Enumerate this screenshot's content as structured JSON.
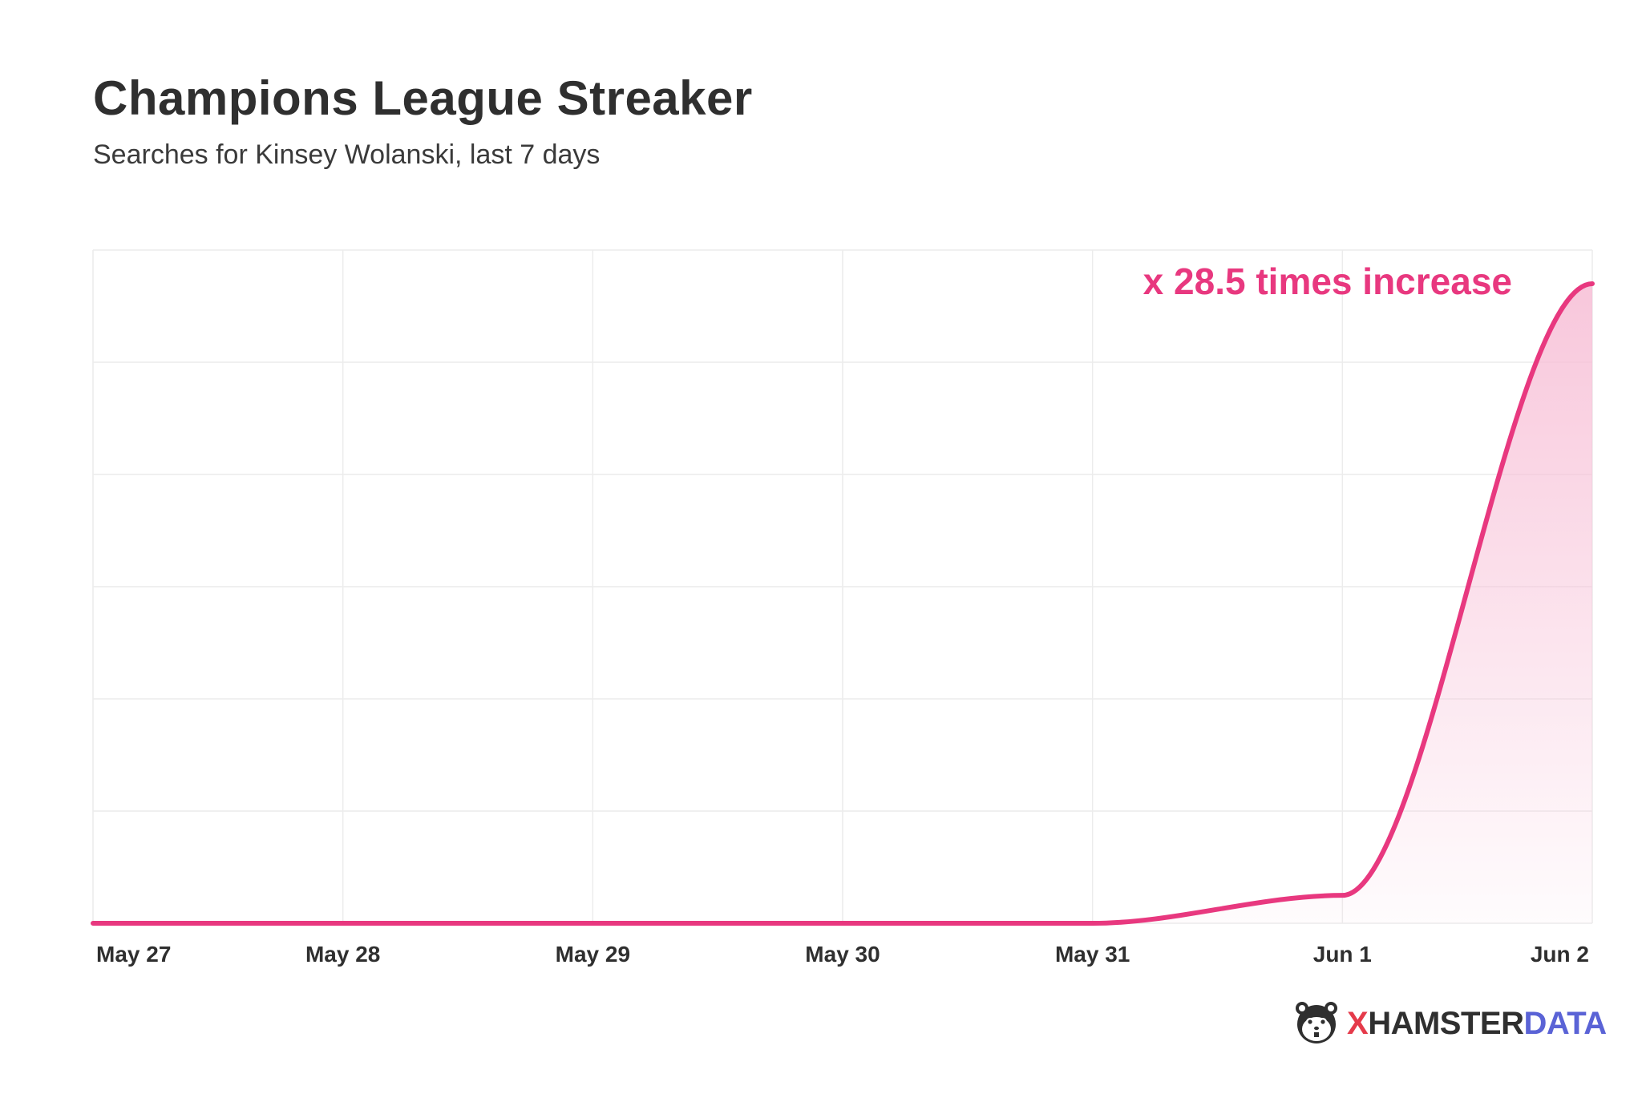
{
  "header": {
    "title": "Champions League Streaker",
    "subtitle": "Searches for Kinsey Wolanski, last 7 days"
  },
  "brand": {
    "x": "X",
    "hamster": "HAMSTER",
    "data": "DATA"
  },
  "colors": {
    "line": "#e8387f",
    "fill": "#f7bdd5",
    "grid": "#ececec",
    "text": "#2f2f2f"
  },
  "chart_data": {
    "type": "area",
    "title": "Champions League Streaker",
    "subtitle": "Searches for Kinsey Wolanski, last 7 days",
    "xlabel": "",
    "ylabel": "",
    "categories": [
      "May 27",
      "May 28",
      "May 29",
      "May 30",
      "May 31",
      "Jun 1",
      "Jun 2"
    ],
    "x": [
      0,
      1,
      2,
      3,
      4,
      5,
      6
    ],
    "series": [
      {
        "values": [
          1,
          1,
          1,
          1,
          1,
          2.2,
          28.5
        ]
      }
    ],
    "ylim": [
      1,
      28.5
    ],
    "y_tick_labels": false,
    "grid": true,
    "legend": "none",
    "annotation": "x 28.5 times increase"
  }
}
